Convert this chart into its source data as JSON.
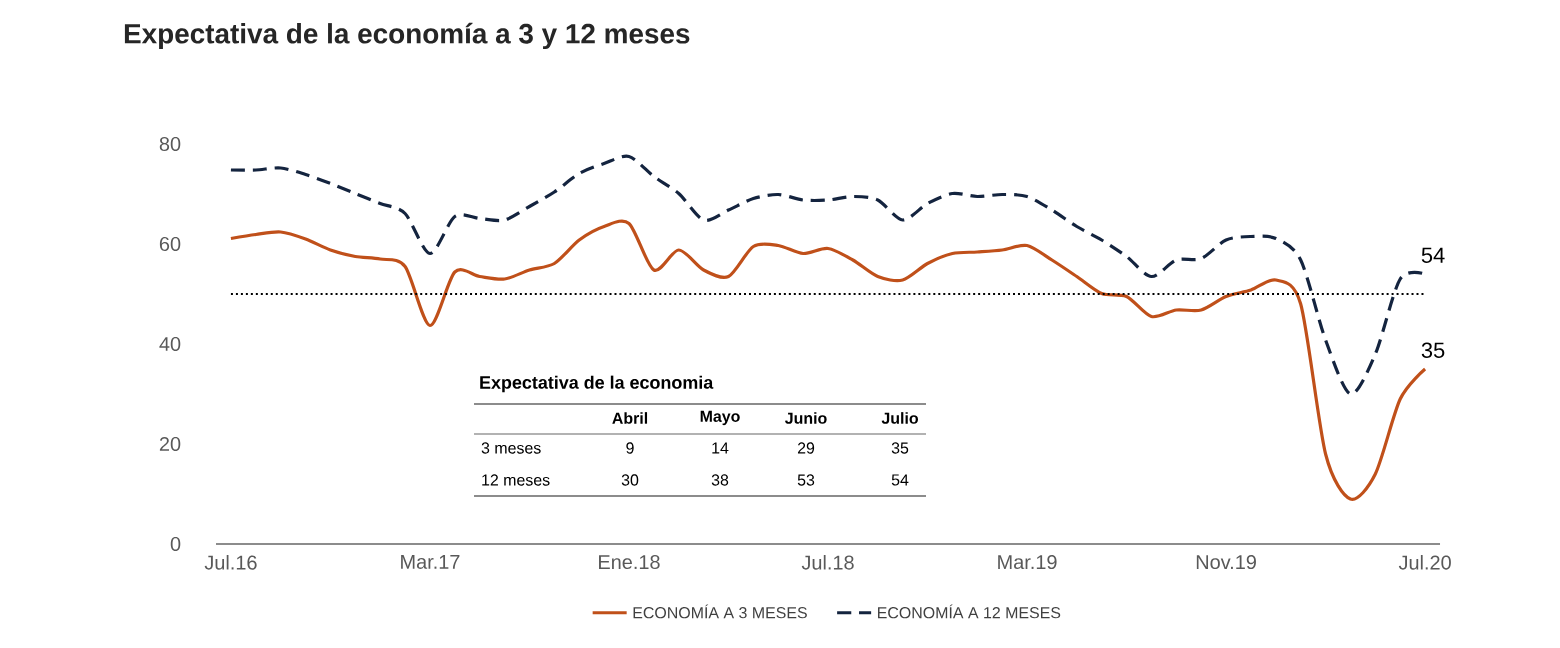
{
  "chart_data": {
    "type": "line",
    "title": "Expectativa de la economía a 3 y 12 meses",
    "categories": [
      "Jul.16",
      null,
      null,
      null,
      null,
      null,
      null,
      null,
      "Mar.17",
      null,
      null,
      null,
      null,
      null,
      null,
      null,
      "Ene.18",
      null,
      null,
      null,
      null,
      null,
      null,
      null,
      "Jul.18",
      null,
      null,
      null,
      null,
      null,
      null,
      null,
      "Mar.19",
      null,
      null,
      null,
      null,
      null,
      null,
      null,
      "Nov.19",
      null,
      null,
      null,
      null,
      null,
      null,
      null,
      "Jul.20"
    ],
    "series": [
      {
        "name": "ECONOMÍA A 3 MESES",
        "color": "#c0501a",
        "line_style": "solid",
        "values": [
          61.1,
          61.9,
          62.4,
          61,
          58.8,
          57.5,
          57,
          55.5,
          43.7,
          54.4,
          53.5,
          53,
          54.8,
          56.1,
          60.8,
          63.5,
          64.1,
          54.8,
          58.8,
          54.8,
          53.5,
          59.5,
          59.7,
          58.1,
          59.1,
          56.8,
          53.5,
          52.8,
          56.1,
          58.1,
          58.4,
          58.8,
          59.7,
          56.8,
          53.5,
          50.1,
          49.5,
          45.5,
          46.8,
          46.8,
          49.5,
          50.8,
          52.8,
          48,
          18,
          9,
          14,
          29,
          35
        ],
        "value_labels": [
          null,
          null,
          null,
          null,
          null,
          null,
          null,
          null,
          null,
          null,
          null,
          null,
          null,
          null,
          null,
          null,
          null,
          null,
          null,
          null,
          null,
          null,
          null,
          null,
          null,
          null,
          null,
          null,
          null,
          null,
          null,
          null,
          null,
          null,
          null,
          null,
          null,
          null,
          null,
          null,
          null,
          null,
          null,
          null,
          null,
          null,
          null,
          null,
          "35"
        ]
      },
      {
        "name": "ECONOMÍA A 12 MESES",
        "color": "#14243f",
        "line_style": "dashed",
        "values": [
          74.8,
          74.8,
          75.2,
          73.9,
          72.1,
          70.1,
          68.1,
          66.1,
          58.1,
          65.5,
          65.1,
          64.8,
          67.5,
          70.4,
          74.1,
          76.1,
          77.5,
          73.5,
          70.1,
          64.8,
          66.8,
          69.1,
          69.9,
          68.8,
          68.8,
          69.5,
          68.8,
          64.8,
          68.1,
          70.1,
          69.5,
          69.9,
          69.5,
          66.8,
          63.5,
          60.8,
          57.5,
          53.5,
          56.8,
          57.1,
          60.8,
          61.5,
          61.1,
          56.8,
          40.8,
          30,
          38,
          53,
          54
        ],
        "value_labels": [
          null,
          null,
          null,
          null,
          null,
          null,
          null,
          null,
          null,
          null,
          null,
          null,
          null,
          null,
          null,
          null,
          null,
          null,
          null,
          null,
          null,
          null,
          null,
          null,
          null,
          null,
          null,
          null,
          null,
          null,
          null,
          null,
          null,
          null,
          null,
          null,
          null,
          null,
          null,
          null,
          null,
          null,
          null,
          null,
          null,
          null,
          null,
          null,
          "54"
        ]
      }
    ],
    "ylim": [
      0,
      80
    ],
    "yticks": [
      0,
      20,
      40,
      60,
      80
    ],
    "ref_lines": [
      {
        "axis": "y",
        "value": 50,
        "color": "#000000",
        "line_style": "dotted"
      }
    ],
    "legend": "bottom",
    "annotations": [
      "Expectativa de la economia",
      "Abril",
      "Mayo",
      "Junio",
      "Julio",
      "3 meses",
      "9",
      "14",
      "29",
      "35",
      "12 meses",
      "30",
      "38",
      "53",
      "54"
    ]
  }
}
